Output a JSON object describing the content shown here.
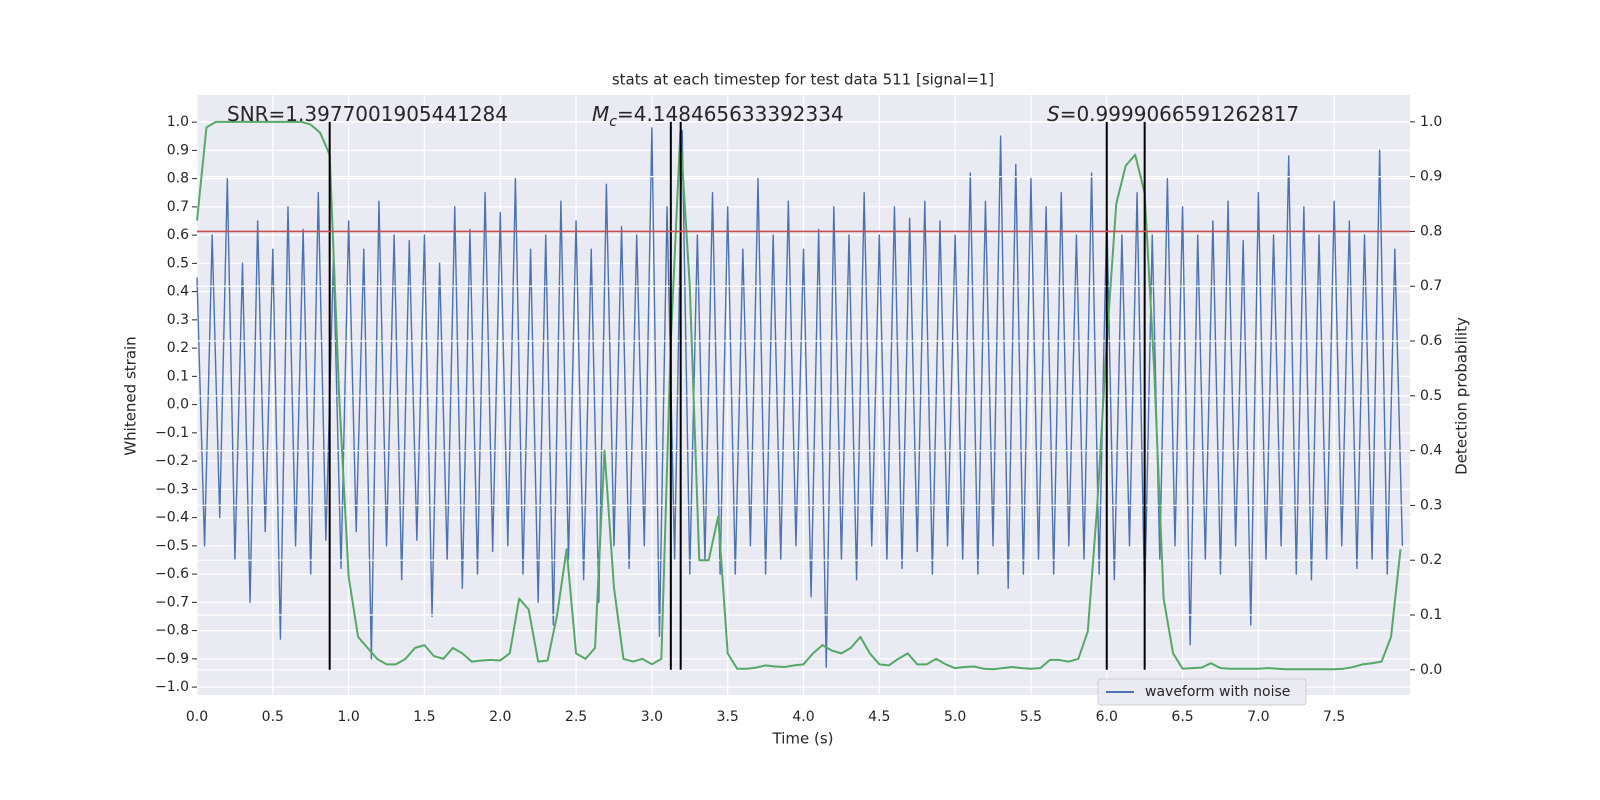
{
  "chart_data": {
    "type": "line",
    "title": "stats at each timestep for test data 511 [signal=1]",
    "xlabel": "Time (s)",
    "ylabel": "Whitened strain",
    "y2label": "Detection probability",
    "xlim": [
      0,
      8.0
    ],
    "ylim": [
      -1.028,
      1.096
    ],
    "y2lim": [
      -0.046,
      1.049
    ],
    "grid": true,
    "background": "#eaeaf2",
    "legend": "lower right",
    "xticks": [
      {
        "value": 0,
        "label": "0.0"
      },
      {
        "value": 0.5,
        "label": "0.5"
      },
      {
        "value": 1,
        "label": "1.0"
      },
      {
        "value": 1.5,
        "label": "1.5"
      },
      {
        "value": 2,
        "label": "2.0"
      },
      {
        "value": 2.5,
        "label": "2.5"
      },
      {
        "value": 3,
        "label": "3.0"
      },
      {
        "value": 3.5,
        "label": "3.5"
      },
      {
        "value": 4,
        "label": "4.0"
      },
      {
        "value": 4.5,
        "label": "4.5"
      },
      {
        "value": 5,
        "label": "5.0"
      },
      {
        "value": 5.5,
        "label": "5.5"
      },
      {
        "value": 6,
        "label": "6.0"
      },
      {
        "value": 6.5,
        "label": "6.5"
      },
      {
        "value": 7,
        "label": "7.0"
      },
      {
        "value": 7.5,
        "label": "7.5"
      }
    ],
    "yticks": [
      {
        "value": -1,
        "label": "−1.0"
      },
      {
        "value": -0.9,
        "label": "−0.9"
      },
      {
        "value": -0.8,
        "label": "−0.8"
      },
      {
        "value": -0.7,
        "label": "−0.7"
      },
      {
        "value": -0.6,
        "label": "−0.6"
      },
      {
        "value": -0.5,
        "label": "−0.5"
      },
      {
        "value": -0.4,
        "label": "−0.4"
      },
      {
        "value": -0.3,
        "label": "−0.3"
      },
      {
        "value": -0.2,
        "label": "−0.2"
      },
      {
        "value": -0.1,
        "label": "−0.1"
      },
      {
        "value": 0,
        "label": "0.0"
      },
      {
        "value": 0.1,
        "label": "0.1"
      },
      {
        "value": 0.2,
        "label": "0.2"
      },
      {
        "value": 0.3,
        "label": "0.3"
      },
      {
        "value": 0.4,
        "label": "0.4"
      },
      {
        "value": 0.5,
        "label": "0.5"
      },
      {
        "value": 0.6,
        "label": "0.6"
      },
      {
        "value": 0.7,
        "label": "0.7"
      },
      {
        "value": 0.8,
        "label": "0.8"
      },
      {
        "value": 0.9,
        "label": "0.9"
      },
      {
        "value": 1,
        "label": "1.0"
      }
    ],
    "y2ticks": [
      {
        "value": 0,
        "label": "0.0"
      },
      {
        "value": 0.1,
        "label": "0.1"
      },
      {
        "value": 0.2,
        "label": "0.2"
      },
      {
        "value": 0.3,
        "label": "0.3"
      },
      {
        "value": 0.4,
        "label": "0.4"
      },
      {
        "value": 0.5,
        "label": "0.5"
      },
      {
        "value": 0.6,
        "label": "0.6"
      },
      {
        "value": 0.7,
        "label": "0.7"
      },
      {
        "value": 0.8,
        "label": "0.8"
      },
      {
        "value": 0.9,
        "label": "0.9"
      },
      {
        "value": 1,
        "label": "1.0"
      }
    ],
    "annotations": [
      {
        "text": "SNR=1.3977001905441284"
      },
      {
        "symbol": "M",
        "subscript": "c",
        "text": "=4.148465633392334"
      },
      {
        "symbol": "S",
        "text": "=0.9999066591262817"
      }
    ],
    "vlines": {
      "color": "#000000",
      "x": [
        0.875,
        3.125,
        3.19,
        6.0,
        6.25
      ]
    },
    "threshold": {
      "color": "#c44e52",
      "value": 0.8,
      "axis": "y2"
    },
    "series": [
      {
        "name": "waveform with noise",
        "color": "#4c72b0",
        "x": [
          0,
          0.05,
          0.1,
          0.15,
          0.2,
          0.25,
          0.3,
          0.35,
          0.4,
          0.45,
          0.5,
          0.55,
          0.6,
          0.65,
          0.7,
          0.75,
          0.8,
          0.85,
          0.9,
          0.95,
          1,
          1.05,
          1.1,
          1.15,
          1.2,
          1.25,
          1.3,
          1.35,
          1.4,
          1.45,
          1.5,
          1.55,
          1.6,
          1.65,
          1.7,
          1.75,
          1.8,
          1.85,
          1.9,
          1.95,
          2,
          2.05,
          2.1,
          2.15,
          2.2,
          2.25,
          2.3,
          2.35,
          2.4,
          2.45,
          2.5,
          2.55,
          2.6,
          2.65,
          2.7,
          2.75,
          2.8,
          2.85,
          2.9,
          2.95,
          3,
          3.05,
          3.1,
          3.15,
          3.2,
          3.25,
          3.3,
          3.35,
          3.4,
          3.45,
          3.5,
          3.55,
          3.6,
          3.65,
          3.7,
          3.75,
          3.8,
          3.85,
          3.9,
          3.95,
          4,
          4.05,
          4.1,
          4.15,
          4.2,
          4.25,
          4.3,
          4.35,
          4.4,
          4.45,
          4.5,
          4.55,
          4.6,
          4.65,
          4.7,
          4.75,
          4.8,
          4.85,
          4.9,
          4.95,
          5,
          5.05,
          5.1,
          5.15,
          5.2,
          5.25,
          5.3,
          5.35,
          5.4,
          5.45,
          5.5,
          5.55,
          5.6,
          5.65,
          5.7,
          5.75,
          5.8,
          5.85,
          5.9,
          5.95,
          6,
          6.05,
          6.1,
          6.15,
          6.2,
          6.25,
          6.3,
          6.35,
          6.4,
          6.45,
          6.5,
          6.55,
          6.6,
          6.65,
          6.7,
          6.75,
          6.8,
          6.85,
          6.9,
          6.95,
          7,
          7.05,
          7.1,
          7.15,
          7.2,
          7.25,
          7.3,
          7.35,
          7.4,
          7.45,
          7.5,
          7.55,
          7.6,
          7.65,
          7.7,
          7.75,
          7.8,
          7.85,
          7.9,
          7.95
        ],
        "values": [
          0.45,
          -0.5,
          0.6,
          -0.4,
          0.8,
          -0.55,
          0.5,
          -0.7,
          0.65,
          -0.45,
          0.55,
          -0.83,
          0.7,
          -0.5,
          0.62,
          -0.6,
          0.75,
          -0.48,
          0.52,
          -0.58,
          0.65,
          -0.45,
          0.55,
          -0.9,
          0.72,
          -0.5,
          0.6,
          -0.62,
          0.58,
          -0.48,
          0.6,
          -0.75,
          0.5,
          -0.55,
          0.7,
          -0.65,
          0.62,
          -0.6,
          0.75,
          -0.52,
          0.68,
          -0.5,
          0.8,
          -0.6,
          0.55,
          -0.7,
          0.6,
          -0.78,
          0.72,
          -0.55,
          0.65,
          -0.62,
          0.55,
          -0.7,
          0.78,
          -0.5,
          0.63,
          -0.58,
          0.6,
          -0.5,
          0.98,
          -0.82,
          0.7,
          -0.55,
          0.97,
          -0.6,
          0.6,
          -0.55,
          0.75,
          -0.6,
          0.7,
          -0.6,
          0.55,
          -0.5,
          0.8,
          -0.6,
          0.6,
          -0.55,
          0.72,
          -0.5,
          0.55,
          -0.68,
          0.62,
          -0.93,
          0.7,
          -0.55,
          0.6,
          -0.62,
          0.75,
          -0.5,
          0.6,
          -0.55,
          0.7,
          -0.58,
          0.66,
          -0.52,
          0.72,
          -0.6,
          0.65,
          -0.5,
          0.6,
          -0.55,
          0.82,
          -0.6,
          0.72,
          -0.5,
          0.95,
          -0.65,
          0.85,
          -0.6,
          0.8,
          -0.55,
          0.7,
          -0.6,
          0.75,
          -0.5,
          0.6,
          -0.55,
          0.82,
          -0.6,
          0.68,
          -0.62,
          0.6,
          -0.5,
          0.75,
          -0.7,
          0.6,
          -0.55,
          0.8,
          -0.5,
          0.7,
          -0.85,
          0.6,
          -0.55,
          0.65,
          -0.6,
          0.72,
          -0.5,
          0.58,
          -0.78,
          0.75,
          -0.55,
          0.6,
          -0.5,
          0.88,
          -0.6,
          0.7,
          -0.62,
          0.6,
          -0.55,
          0.72,
          -0.5,
          0.65,
          -0.58,
          0.6,
          -0.55,
          0.9,
          -0.6,
          0.55,
          -0.5
        ]
      },
      {
        "color": "#55a868",
        "axis": "y2",
        "x": [
          0,
          0.0625,
          0.125,
          0.1875,
          0.25,
          0.3125,
          0.375,
          0.4375,
          0.5,
          0.5625,
          0.625,
          0.6875,
          0.75,
          0.8125,
          0.875,
          0.9375,
          1,
          1.0625,
          1.125,
          1.1875,
          1.25,
          1.3125,
          1.375,
          1.4375,
          1.5,
          1.5625,
          1.625,
          1.6875,
          1.75,
          1.8125,
          1.875,
          1.9375,
          2,
          2.0625,
          2.125,
          2.1875,
          2.25,
          2.3125,
          2.375,
          2.4375,
          2.5,
          2.5625,
          2.625,
          2.6875,
          2.75,
          2.8125,
          2.875,
          2.9375,
          3,
          3.0625,
          3.125,
          3.1875,
          3.25,
          3.3125,
          3.375,
          3.4375,
          3.5,
          3.5625,
          3.625,
          3.6875,
          3.75,
          3.8125,
          3.875,
          3.9375,
          4,
          4.0625,
          4.125,
          4.1875,
          4.25,
          4.3125,
          4.375,
          4.4375,
          4.5,
          4.5625,
          4.625,
          4.6875,
          4.75,
          4.8125,
          4.875,
          4.9375,
          5,
          5.0625,
          5.125,
          5.1875,
          5.25,
          5.3125,
          5.375,
          5.4375,
          5.5,
          5.5625,
          5.625,
          5.6875,
          5.75,
          5.8125,
          5.875,
          5.9375,
          6,
          6.0625,
          6.125,
          6.1875,
          6.25,
          6.3125,
          6.375,
          6.4375,
          6.5,
          6.5625,
          6.625,
          6.6875,
          6.75,
          6.8125,
          6.875,
          6.9375,
          7,
          7.0625,
          7.125,
          7.1875,
          7.25,
          7.3125,
          7.375,
          7.4375,
          7.5,
          7.5625,
          7.625,
          7.6875,
          7.75,
          7.8125,
          7.875,
          7.9375
        ],
        "values": [
          0.82,
          0.99,
          1,
          1,
          1,
          1,
          1,
          1,
          1,
          1,
          1,
          1,
          0.995,
          0.98,
          0.94,
          0.5,
          0.17,
          0.06,
          0.04,
          0.02,
          0.01,
          0.01,
          0.02,
          0.04,
          0.045,
          0.025,
          0.02,
          0.04,
          0.03,
          0.015,
          0.017,
          0.018,
          0.017,
          0.03,
          0.13,
          0.11,
          0.015,
          0.017,
          0.1,
          0.22,
          0.03,
          0.02,
          0.04,
          0.4,
          0.15,
          0.02,
          0.015,
          0.02,
          0.01,
          0.02,
          0.6,
          0.98,
          0.7,
          0.2,
          0.2,
          0.28,
          0.03,
          0.002,
          0.002,
          0.004,
          0.008,
          0.006,
          0.005,
          0.008,
          0.01,
          0.03,
          0.045,
          0.035,
          0.03,
          0.04,
          0.06,
          0.03,
          0.01,
          0.008,
          0.02,
          0.03,
          0.01,
          0.01,
          0.02,
          0.01,
          0.003,
          0.005,
          0.006,
          0.002,
          0.001,
          0.003,
          0.005,
          0.003,
          0.002,
          0.003,
          0.018,
          0.018,
          0.015,
          0.02,
          0.07,
          0.3,
          0.6,
          0.85,
          0.92,
          0.94,
          0.87,
          0.55,
          0.13,
          0.03,
          0.002,
          0.003,
          0.004,
          0.012,
          0.003,
          0.002,
          0.002,
          0.002,
          0.002,
          0.003,
          0.002,
          0.001,
          0.001,
          0.001,
          0.001,
          0.001,
          0.001,
          0.002,
          0.005,
          0.01,
          0.012,
          0.015,
          0.06,
          0.22
        ]
      }
    ]
  }
}
